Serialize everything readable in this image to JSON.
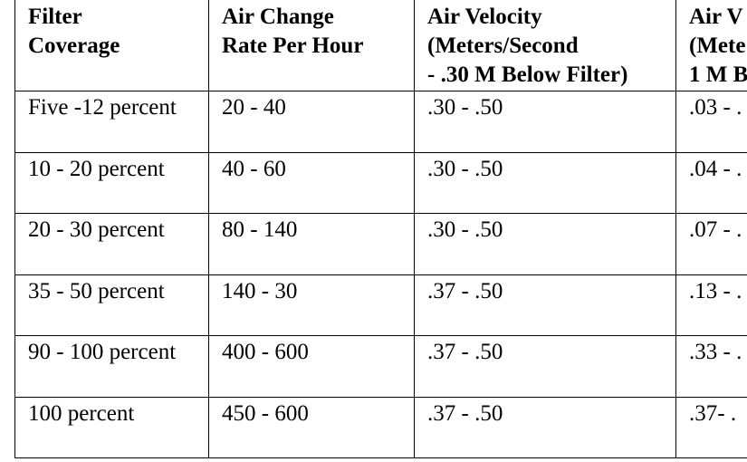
{
  "table": {
    "headers": [
      [
        "Filter",
        "Coverage"
      ],
      [
        "Air Change",
        "Rate Per Hour"
      ],
      [
        "Air Velocity",
        "(Meters/Second",
        "- .30 M Below Filter)"
      ],
      [
        "Air V",
        "(Mete",
        "1 M B"
      ]
    ],
    "rows": [
      [
        "Five -12 percent",
        "20 - 40",
        ".30 - .50",
        ".03 - ."
      ],
      [
        "10 - 20 percent",
        "40 - 60",
        ".30 - .50",
        ".04 - ."
      ],
      [
        "20 - 30 percent",
        "80 - 140",
        ".30 - .50",
        ".07 - ."
      ],
      [
        "35 - 50 percent",
        "140 - 30",
        ".37 - .50",
        ".13 - ."
      ],
      [
        "90 - 100 percent",
        "400 - 600",
        ".37 - .50",
        ".33 - ."
      ],
      [
        "100 percent",
        "450 - 600",
        ".37 - .50",
        ".37- ."
      ]
    ]
  }
}
